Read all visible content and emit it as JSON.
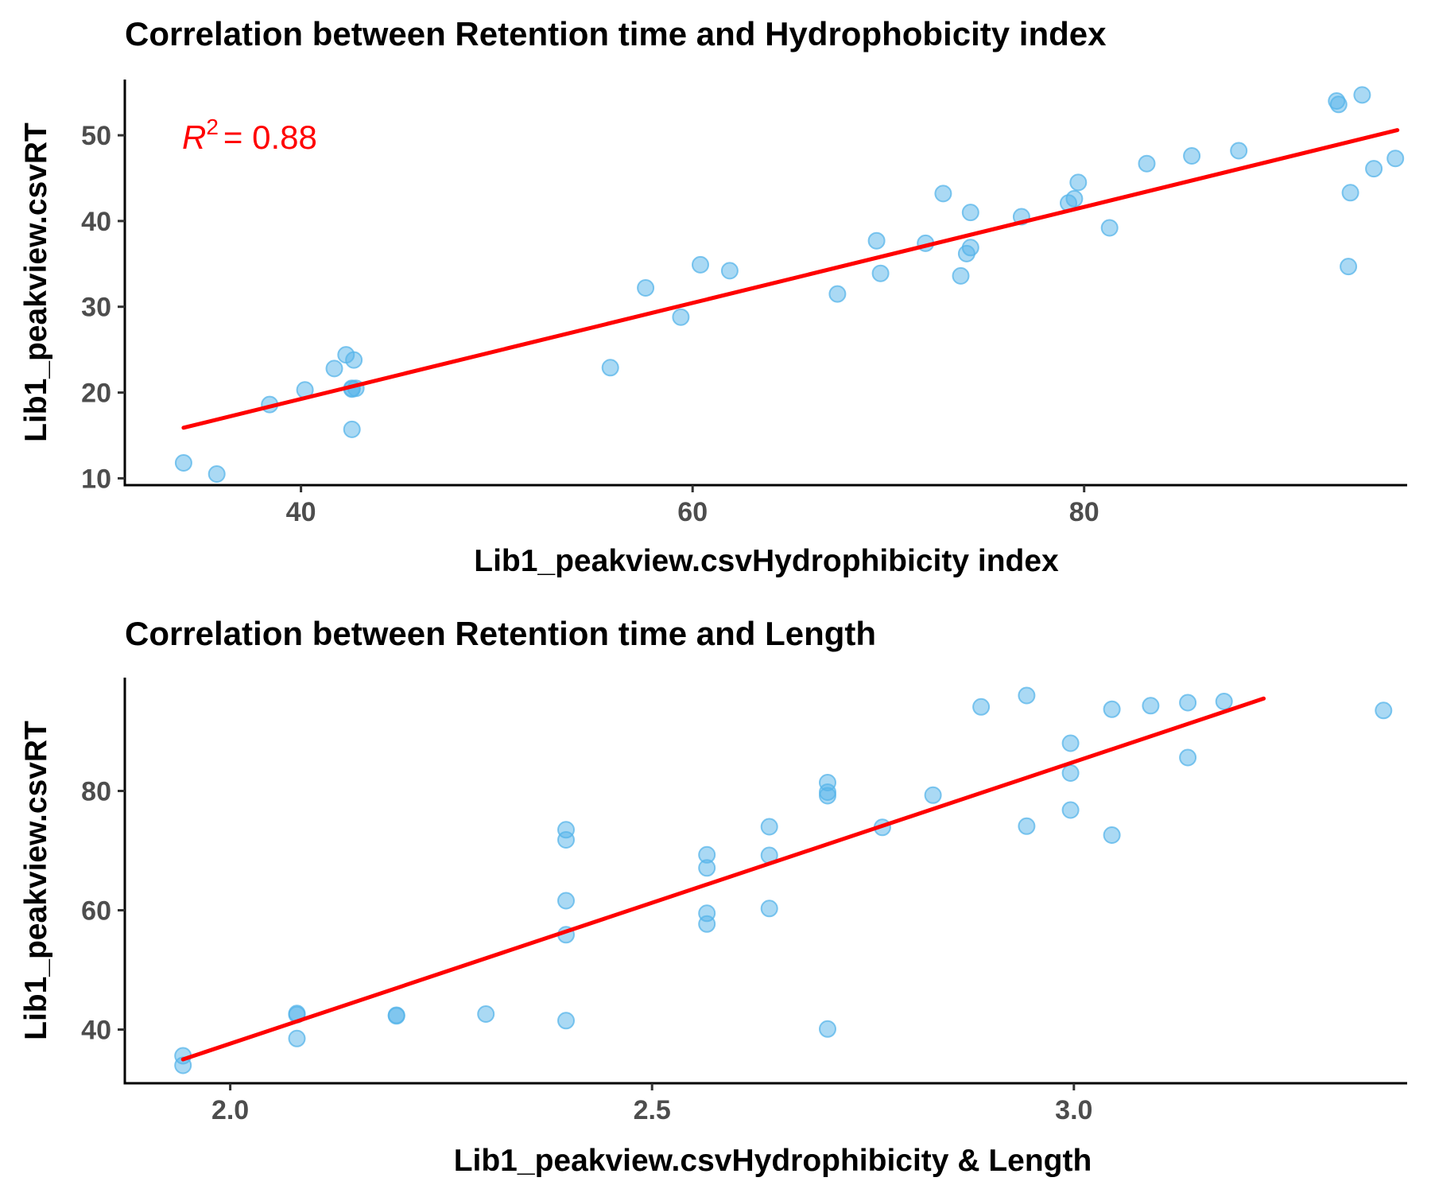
{
  "chart_data": [
    {
      "type": "scatter",
      "title": "Correlation between Retention time and Hydrophobicity index",
      "xlabel": "Lib1_peakview.csvHydrophibicity index",
      "ylabel": "Lib1_peakview.csvRT",
      "xlim": [
        31,
        96.5
      ],
      "ylim": [
        9.2,
        56.5
      ],
      "xticks": [
        40,
        60,
        80
      ],
      "yticks": [
        10,
        20,
        30,
        40,
        50
      ],
      "xtick_labels": [
        "40",
        "60",
        "80"
      ],
      "ytick_labels": [
        "10",
        "20",
        "30",
        "40",
        "50"
      ],
      "grid": false,
      "legend": "none",
      "point_color": "#56b4e9",
      "line_color": "#ff0000",
      "annotation": {
        "r2_symbol": "R",
        "r2_power": "2",
        "r2_rest": "= 0.88",
        "x": 34,
        "y": 49
      },
      "fit_line": {
        "x": [
          34,
          96
        ],
        "y": [
          15.9,
          50.6
        ]
      },
      "points": {
        "x": [
          34,
          35.7,
          38.4,
          40.2,
          41.7,
          42.3,
          42.6,
          42.7,
          42.6,
          42.8,
          42.6,
          55.8,
          57.6,
          59.4,
          60.4,
          61.9,
          67.4,
          69.4,
          69.6,
          71.9,
          72.8,
          73.7,
          74,
          74.2,
          74.2,
          76.8,
          79.2,
          79.5,
          79.7,
          81.3,
          83.2,
          85.5,
          87.9,
          92.9,
          93,
          93.5,
          93.6,
          94.2,
          94.8,
          95.9
        ],
        "y": [
          11.8,
          10.5,
          18.6,
          20.3,
          22.8,
          24.4,
          20.4,
          23.8,
          15.7,
          20.5,
          20.5,
          22.9,
          32.2,
          28.8,
          34.9,
          34.2,
          31.5,
          37.7,
          33.9,
          37.4,
          43.2,
          33.6,
          36.2,
          36.9,
          41.0,
          40.5,
          42.1,
          42.6,
          44.5,
          39.2,
          46.7,
          47.6,
          48.2,
          54.0,
          53.6,
          34.7,
          43.3,
          54.7,
          46.1,
          47.3
        ]
      }
    },
    {
      "type": "scatter",
      "title": "Correlation between Retention time and Length",
      "xlabel": "Lib1_peakview.csvHydrophibicity & Length",
      "ylabel": "Lib1_peakview.csvRT",
      "xlim": [
        1.875,
        3.395
      ],
      "ylim": [
        31,
        99
      ],
      "xticks": [
        2.0,
        2.5,
        3.0
      ],
      "yticks": [
        40,
        60,
        80
      ],
      "xtick_labels": [
        "2.0",
        "2.5",
        "3.0"
      ],
      "ytick_labels": [
        "40",
        "60",
        "80"
      ],
      "grid": false,
      "legend": "none",
      "point_color": "#56b4e9",
      "line_color": "#ff0000",
      "fit_line": {
        "x": [
          1.944,
          3.225
        ],
        "y": [
          35.0,
          95.5
        ]
      },
      "points": {
        "x": [
          1.944,
          1.944,
          2.079,
          2.079,
          2.079,
          2.197,
          2.197,
          2.303,
          2.398,
          2.398,
          2.398,
          2.398,
          2.398,
          2.565,
          2.565,
          2.565,
          2.565,
          2.639,
          2.639,
          2.639,
          2.708,
          2.708,
          2.708,
          2.708,
          2.773,
          2.833,
          2.89,
          2.944,
          2.944,
          2.996,
          2.996,
          2.996,
          3.045,
          3.045,
          3.091,
          3.135,
          3.135,
          3.178,
          3.367
        ],
        "y": [
          35.6,
          34.0,
          42.5,
          42.7,
          38.5,
          42.3,
          42.4,
          42.6,
          73.5,
          71.8,
          61.6,
          55.9,
          41.5,
          69.3,
          67.1,
          59.5,
          57.7,
          74.0,
          69.2,
          60.3,
          81.4,
          79.8,
          79.2,
          40.1,
          73.9,
          79.3,
          94.1,
          96.0,
          74.1,
          88.0,
          83.0,
          76.8,
          93.7,
          72.6,
          94.3,
          94.8,
          85.6,
          95.0,
          93.5
        ]
      }
    }
  ]
}
